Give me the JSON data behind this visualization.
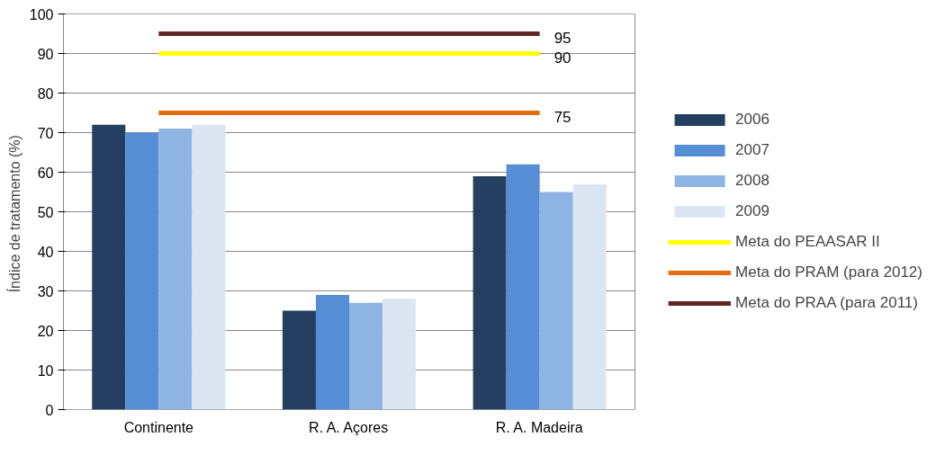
{
  "chart_data": {
    "type": "bar",
    "ylabel": "Índice de tratamento  (%)",
    "categories": [
      "Continente",
      "R. A. Açores",
      "R. A. Madeira"
    ],
    "series": [
      {
        "name": "2006",
        "color": "#243f60",
        "values": [
          72,
          25,
          59
        ]
      },
      {
        "name": "2007",
        "color": "#558ed5",
        "values": [
          70,
          29,
          62
        ]
      },
      {
        "name": "2008",
        "color": "#8eb4e3",
        "values": [
          71,
          27,
          55
        ]
      },
      {
        "name": "2009",
        "color": "#dce6f2",
        "values": [
          72,
          28,
          57
        ]
      },
      {
        "name": "Meta do PEAASAR II",
        "type": "line",
        "color": "#ffff00",
        "values": [
          90,
          90,
          90
        ],
        "value_labels": [
          null,
          null,
          "90"
        ]
      },
      {
        "name": "Meta do PRAM (para 2012)",
        "type": "line",
        "color": "#e46c0a",
        "values": [
          75,
          75,
          75
        ],
        "value_labels": [
          null,
          null,
          "75"
        ]
      },
      {
        "name": "Meta do PRAA (para 2011)",
        "type": "line",
        "color": "#632523",
        "values": [
          95,
          95,
          95
        ],
        "value_labels": [
          null,
          null,
          "95"
        ]
      }
    ],
    "ylim": [
      0,
      100
    ],
    "yticks": [
      0,
      10,
      20,
      30,
      40,
      50,
      60,
      70,
      80,
      90,
      100
    ],
    "grid": "y",
    "legend": "right",
    "marker": "none",
    "line_style": "solid"
  }
}
